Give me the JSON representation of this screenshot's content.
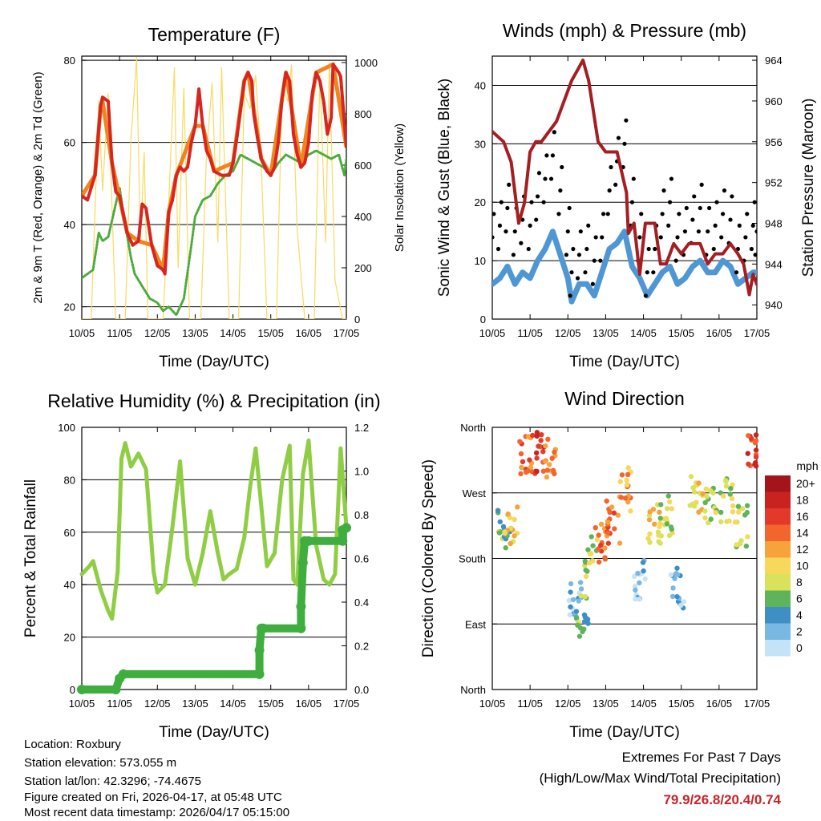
{
  "chart_data": [
    {
      "id": "temp",
      "type": "line",
      "title": "Temperature (F)",
      "xlabel": "Time (Day/UTC)",
      "ylabel": "2m & 9m T (Red, Orange) & 2m Td (Green)",
      "y2label": "Solar Insolation (Yellow)",
      "ylim": [
        17,
        81
      ],
      "y2lim": [
        0,
        1025
      ],
      "yticks": [
        20,
        40,
        60,
        80
      ],
      "y2ticks": [
        0,
        200,
        400,
        600,
        800,
        1000
      ],
      "hlines": [
        20,
        40,
        60,
        80
      ],
      "x_ticks": [
        "10/05",
        "11/05",
        "12/05",
        "13/05",
        "14/05",
        "15/05",
        "16/05",
        "17/05"
      ],
      "series": [
        {
          "name": "2m T",
          "color": "#d6261f",
          "x": [
            0,
            0.15,
            0.35,
            0.5,
            0.55,
            0.7,
            0.8,
            0.9,
            1.0,
            1.2,
            1.35,
            1.5,
            1.6,
            1.7,
            1.85,
            2.0,
            2.15,
            2.2,
            2.3,
            2.4,
            2.5,
            2.6,
            2.7,
            2.8,
            2.9,
            3.0,
            3.1,
            3.2,
            3.3,
            3.4,
            3.5,
            3.7,
            3.9,
            4.0,
            4.1,
            4.2,
            4.3,
            4.4,
            4.5,
            4.55,
            4.65,
            4.75,
            4.9,
            5.0,
            5.1,
            5.2,
            5.3,
            5.4,
            5.5,
            5.6,
            5.7,
            5.8,
            5.9,
            6.0,
            6.1,
            6.2,
            6.3,
            6.4,
            6.5,
            6.6,
            6.65,
            6.8,
            6.85,
            7.0
          ],
          "values": [
            47,
            46,
            52,
            69,
            71,
            70,
            55,
            48,
            47,
            38,
            35,
            36,
            45,
            44,
            35,
            30,
            29,
            28,
            43,
            46,
            52,
            54,
            53,
            54,
            60,
            64,
            73,
            64,
            58,
            56,
            53,
            52,
            52,
            55,
            61,
            68,
            75,
            77,
            75,
            67,
            61,
            56,
            53,
            52,
            54,
            60,
            71,
            77,
            75,
            62,
            57,
            54,
            55,
            60,
            72,
            77,
            75,
            70,
            62,
            66,
            79,
            77,
            76,
            59
          ]
        },
        {
          "name": "9m T",
          "color": "#f0841e",
          "x": [
            0,
            0.35,
            0.5,
            0.55,
            0.8,
            1.2,
            1.5,
            1.85,
            2.15,
            2.3,
            2.5,
            3.0,
            3.2,
            3.5,
            4.0,
            4.3,
            4.4,
            4.75,
            5.0,
            5.4,
            5.8,
            6.2,
            6.65,
            7.0
          ],
          "values": [
            47,
            52,
            69,
            70,
            55,
            38,
            36,
            35,
            29,
            43,
            52,
            64,
            64,
            53,
            55,
            75,
            77,
            56,
            52,
            77,
            54,
            77,
            79,
            59
          ]
        },
        {
          "name": "2m Td",
          "color": "#4cab3c",
          "x": [
            0,
            0.3,
            0.45,
            0.55,
            0.7,
            0.9,
            1.0,
            1.15,
            1.3,
            1.4,
            1.6,
            1.8,
            2.0,
            2.15,
            2.3,
            2.5,
            2.7,
            2.9,
            3.0,
            3.2,
            3.4,
            3.6,
            3.8,
            4.0,
            4.2,
            4.4,
            4.6,
            4.8,
            5.0,
            5.2,
            5.4,
            5.6,
            5.8,
            6.0,
            6.2,
            6.4,
            6.6,
            6.8,
            6.95,
            7.0
          ],
          "values": [
            27,
            29,
            38,
            36,
            37,
            45,
            49,
            40,
            32,
            28,
            25,
            22,
            21,
            19,
            20,
            18,
            22,
            35,
            42,
            46,
            47,
            50,
            52,
            53,
            57,
            56,
            55,
            54,
            52,
            55,
            57,
            56,
            55,
            57,
            58,
            57,
            56,
            57,
            52,
            56
          ]
        },
        {
          "name": "Solar Insolation",
          "color": "#f8da60",
          "axis": "y2",
          "x": [
            0,
            0.25,
            0.45,
            0.55,
            0.7,
            0.9,
            1.15,
            1.3,
            1.45,
            1.55,
            1.65,
            1.75,
            1.9,
            2.15,
            2.3,
            2.45,
            2.55,
            2.7,
            2.85,
            3.15,
            3.3,
            3.45,
            3.6,
            3.7,
            3.9,
            4.15,
            4.3,
            4.45,
            4.6,
            4.75,
            4.9,
            5.15,
            5.3,
            5.45,
            5.55,
            5.7,
            5.9,
            6.15,
            6.3,
            6.45,
            6.55,
            6.7,
            6.9,
            7.0
          ],
          "values": [
            0,
            0,
            850,
            500,
            880,
            0,
            0,
            700,
            1020,
            300,
            650,
            0,
            0,
            0,
            450,
            980,
            200,
            900,
            0,
            0,
            650,
            920,
            300,
            980,
            0,
            0,
            880,
            820,
            950,
            600,
            0,
            0,
            900,
            850,
            990,
            350,
            0,
            0,
            950,
            300,
            1000,
            150,
            0,
            0
          ]
        }
      ]
    },
    {
      "id": "wind",
      "type": "scatter",
      "title": "Winds (mph) & Pressure (mb)",
      "xlabel": "Time (Day/UTC)",
      "ylabel": "Sonic Wind & Gust (Blue, Black)",
      "y2label": "Station Pressure (Maroon)",
      "ylim": [
        0,
        45
      ],
      "y2lim": [
        938.6,
        964.4
      ],
      "yticks": [
        0,
        10,
        20,
        30,
        40
      ],
      "y2ticks": [
        940,
        944,
        948,
        952,
        956,
        960,
        964
      ],
      "hlines": [
        10,
        20,
        30,
        40
      ],
      "x_ticks": [
        "10/05",
        "11/05",
        "12/05",
        "13/05",
        "14/05",
        "15/05",
        "16/05",
        "17/05"
      ],
      "series": [
        {
          "name": "Sonic Wind",
          "color": "#4f97d4",
          "x": [
            0,
            0.2,
            0.4,
            0.6,
            0.8,
            1.0,
            1.2,
            1.4,
            1.6,
            1.8,
            2.0,
            2.1,
            2.3,
            2.5,
            2.7,
            2.9,
            3.1,
            3.3,
            3.5,
            3.7,
            3.9,
            4.1,
            4.3,
            4.5,
            4.7,
            4.9,
            5.1,
            5.3,
            5.5,
            5.7,
            5.9,
            6.1,
            6.3,
            6.5,
            6.7,
            6.9,
            7.0
          ],
          "values": [
            6,
            7,
            9,
            6,
            8,
            7,
            10,
            12,
            15,
            11,
            7,
            3,
            6,
            6,
            4,
            8,
            12,
            13,
            15,
            9,
            7,
            4,
            6,
            8,
            9,
            6,
            7,
            9,
            10,
            8,
            8,
            10,
            9,
            6,
            7,
            8,
            8
          ]
        },
        {
          "name": "Gust",
          "color": "#000000",
          "x": [
            0,
            0.2,
            0.4,
            0.6,
            0.8,
            1.0,
            1.2,
            1.4,
            1.6,
            1.8,
            2.0,
            2.1,
            2.3,
            2.5,
            2.7,
            2.9,
            3.1,
            3.3,
            3.5,
            3.7,
            3.9,
            4.1,
            4.3,
            4.5,
            4.7,
            4.9,
            5.1,
            5.3,
            5.5,
            5.7,
            5.9,
            6.1,
            6.3,
            6.5,
            6.7,
            6.9,
            7.0
          ],
          "values": [
            14,
            16,
            19,
            15,
            17,
            16,
            21,
            24,
            28,
            22,
            15,
            8,
            11,
            12,
            10,
            14,
            22,
            27,
            30,
            20,
            14,
            8,
            12,
            18,
            20,
            14,
            15,
            17,
            19,
            15,
            16,
            18,
            17,
            12,
            14,
            16,
            15
          ]
        },
        {
          "name": "Station Pressure",
          "color": "#a41e22",
          "axis": "y2",
          "x": [
            0,
            0.3,
            0.5,
            0.7,
            0.85,
            1.0,
            1.15,
            1.3,
            1.5,
            1.7,
            1.9,
            2.1,
            2.25,
            2.4,
            2.55,
            2.8,
            3.0,
            3.3,
            3.55,
            3.6,
            3.75,
            3.9,
            4.05,
            4.3,
            4.45,
            4.6,
            4.8,
            5.0,
            5.2,
            5.5,
            5.7,
            5.9,
            6.1,
            6.3,
            6.5,
            6.65,
            6.8,
            6.9,
            7.0
          ],
          "values": [
            957,
            956,
            954,
            948,
            950,
            955,
            956,
            956,
            957,
            958,
            960,
            962,
            963,
            964,
            962,
            956,
            955,
            955,
            951,
            947,
            948,
            943,
            948,
            948,
            944,
            944,
            946,
            945,
            946,
            946,
            944,
            945,
            945,
            946,
            945,
            944,
            941,
            943,
            942
          ]
        }
      ]
    },
    {
      "id": "rh",
      "type": "line",
      "title": "Relative Humidity (%) & Precipitation (in)",
      "xlabel": "Time (Day/UTC)",
      "ylabel": "Percent & Total Rainfall",
      "ylim": [
        0,
        100
      ],
      "y2lim": [
        0,
        1.2
      ],
      "yticks": [
        0,
        20,
        40,
        60,
        80,
        100
      ],
      "y2ticks": [
        0.0,
        0.2,
        0.4,
        0.6,
        0.8,
        1.0,
        1.2
      ],
      "hlines": [
        20,
        40,
        60,
        80
      ],
      "x_ticks": [
        "10/05",
        "11/05",
        "12/05",
        "13/05",
        "14/05",
        "15/05",
        "16/05",
        "17/05"
      ],
      "series": [
        {
          "name": "Relative Humidity",
          "color": "#8fce44",
          "x": [
            0,
            0.2,
            0.3,
            0.5,
            0.7,
            0.8,
            0.95,
            1.05,
            1.15,
            1.3,
            1.5,
            1.7,
            1.9,
            2.0,
            2.2,
            2.4,
            2.6,
            2.8,
            3.0,
            3.2,
            3.4,
            3.6,
            3.75,
            3.9,
            4.1,
            4.3,
            4.45,
            4.6,
            4.75,
            4.9,
            5.1,
            5.3,
            5.5,
            5.6,
            5.7,
            5.85,
            6.0,
            6.2,
            6.4,
            6.55,
            6.7,
            6.85,
            7.0
          ],
          "values": [
            44,
            47,
            49,
            38,
            30,
            27,
            45,
            88,
            94,
            85,
            90,
            84,
            45,
            37,
            40,
            62,
            87,
            50,
            40,
            52,
            68,
            52,
            42,
            44,
            46,
            58,
            77,
            92,
            70,
            47,
            52,
            80,
            93,
            42,
            40,
            82,
            95,
            55,
            42,
            40,
            44,
            92,
            62
          ]
        },
        {
          "name": "Total Precipitation",
          "color": "#3fae3f",
          "axis": "y2",
          "x": [
            0,
            0.9,
            1.0,
            1.1,
            4.7,
            4.7,
            4.75,
            4.8,
            5.8,
            5.8,
            5.85,
            5.9,
            6.0,
            6.9,
            6.9,
            7.0
          ],
          "values": [
            0,
            0,
            0.05,
            0.07,
            0.07,
            0.18,
            0.28,
            0.28,
            0.28,
            0.38,
            0.58,
            0.68,
            0.68,
            0.68,
            0.73,
            0.74
          ]
        }
      ]
    },
    {
      "id": "dir",
      "type": "scatter",
      "title": "Wind Direction",
      "xlabel": "Time (Day/UTC)",
      "ylabel": "Direction (Colored By Speed)",
      "ylim": [
        0,
        360
      ],
      "ytick_labels": [
        "North",
        "East",
        "South",
        "West",
        "North"
      ],
      "hlines": [
        90,
        180,
        270
      ],
      "x_ticks": [
        "10/05",
        "11/05",
        "12/05",
        "13/05",
        "14/05",
        "15/05",
        "16/05",
        "17/05"
      ],
      "legend_title": "mph",
      "legend_labels": [
        "20+",
        "18",
        "16",
        "14",
        "12",
        "10",
        "8",
        "6",
        "4",
        "2",
        "0"
      ],
      "legend_colors": [
        "#a3151b",
        "#c8231f",
        "#e2392a",
        "#f2652d",
        "#f8a23c",
        "#f6d85a",
        "#d9e25a",
        "#5fb45a",
        "#3f8fc7",
        "#7ab8e4",
        "#c4e3f6"
      ],
      "clusters": [
        {
          "x": 0.3,
          "dir": 220,
          "speed": 6
        },
        {
          "x": 0.5,
          "dir": 225,
          "speed": 10
        },
        {
          "x": 0.9,
          "dir": 325,
          "speed": 14
        },
        {
          "x": 1.2,
          "dir": 325,
          "speed": 16
        },
        {
          "x": 1.5,
          "dir": 320,
          "speed": 14
        },
        {
          "x": 2.2,
          "dir": 120,
          "speed": 2
        },
        {
          "x": 2.4,
          "dir": 100,
          "speed": 6
        },
        {
          "x": 2.6,
          "dir": 185,
          "speed": 8
        },
        {
          "x": 2.9,
          "dir": 205,
          "speed": 14
        },
        {
          "x": 3.2,
          "dir": 230,
          "speed": 14
        },
        {
          "x": 3.5,
          "dir": 275,
          "speed": 12
        },
        {
          "x": 3.9,
          "dir": 150,
          "speed": 2
        },
        {
          "x": 4.3,
          "dir": 225,
          "speed": 10
        },
        {
          "x": 4.6,
          "dir": 240,
          "speed": 8
        },
        {
          "x": 4.9,
          "dir": 140,
          "speed": 2
        },
        {
          "x": 5.4,
          "dir": 270,
          "speed": 10
        },
        {
          "x": 5.8,
          "dir": 250,
          "speed": 8
        },
        {
          "x": 6.2,
          "dir": 260,
          "speed": 8
        },
        {
          "x": 6.6,
          "dir": 225,
          "speed": 8
        },
        {
          "x": 6.9,
          "dir": 325,
          "speed": 16
        }
      ]
    }
  ],
  "footer": {
    "location": "Location: Roxbury",
    "elevation": "Station elevation: 573.055 m",
    "latlon": "Station lat/lon: 42.3296; -74.4675",
    "created": "Figure created on Fri, 2026-04-17, at 05:48 UTC",
    "recent": "Most recent data timestamp: 2026/04/17 05:15:00"
  },
  "extremes": {
    "title": "Extremes For Past 7 Days",
    "subtitle": "(High/Low/Max Wind/Total Precipitation)",
    "values": "79.9/26.8/20.4/0.74",
    "color": "#c8232a"
  }
}
